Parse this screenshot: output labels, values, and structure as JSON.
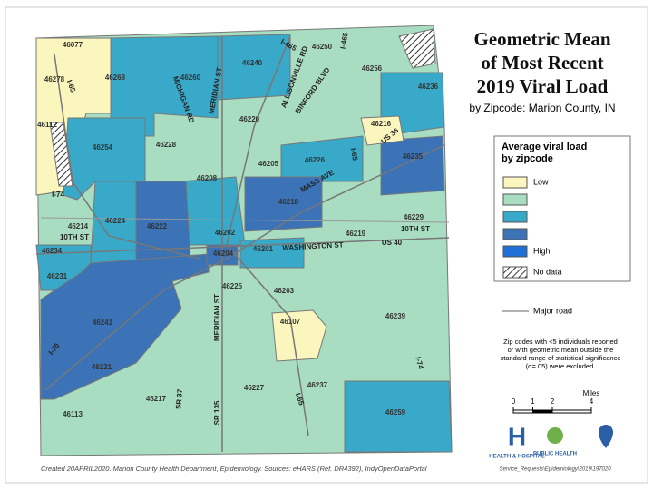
{
  "title": [
    "Geometric Mean",
    "of Most Recent",
    "2019 Viral Load"
  ],
  "subtitle": "by Zipcode: Marion County, IN",
  "legend": {
    "title": [
      "Average viral load",
      "by zipcode"
    ],
    "items": [
      {
        "label": "Low",
        "color": "#fbf6bd"
      },
      {
        "color": "#a9ddc1"
      },
      {
        "color": "#39a9c9"
      },
      {
        "color": "#3b73b6"
      },
      {
        "label": "High",
        "color": "#1f6fd6"
      },
      {
        "label": "No data",
        "pattern": "hatch"
      }
    ],
    "road": "Major road"
  },
  "note": [
    "Zip codes with <5 individuals reported",
    "or with geometric mean outside the",
    "standard range of statistical significance",
    "(α=.05) were excluded."
  ],
  "scale": {
    "unit": "Miles",
    "ticks": [
      0,
      1,
      2,
      4
    ]
  },
  "zips": [
    "46077",
    "46278",
    "46268",
    "46260",
    "46240",
    "46250",
    "46256",
    "46236",
    "46112",
    "46220",
    "46216",
    "46254",
    "46228",
    "46205",
    "46226",
    "46235",
    "46208",
    "46218",
    "46214",
    "46224",
    "46222",
    "46202",
    "46229",
    "46219",
    "46234",
    "46204",
    "46201",
    "46231",
    "46225",
    "46203",
    "46107",
    "46239",
    "46241",
    "46221",
    "46227",
    "46237",
    "46217",
    "46113",
    "46259"
  ],
  "roads": [
    "MERIDIAN ST",
    "MICHIGAN RD",
    "I-465",
    "ALLISONVILLE RD",
    "BINFORD BLVD",
    "MASS AVE",
    "10TH ST",
    "10TH ST",
    "WASHINGTON ST",
    "US 40",
    "US 36",
    "I-70",
    "I-65",
    "I-65",
    "SR 37",
    "SR 135",
    "MERIDIAN ST",
    "I-74",
    "I-74",
    "I-465",
    "I-65"
  ],
  "logos": [
    "HEALTH & HOSPITAL",
    "PUBLIC HEALTH"
  ],
  "footer": "Created 20APRIL2020. Marion County Health Department, Epidemiology. Sources: eHARS (Ref. DR4392), IndyOpenDataPortal",
  "footer_right": "Service_Requests\\Epidemiology\\2019\\197020"
}
